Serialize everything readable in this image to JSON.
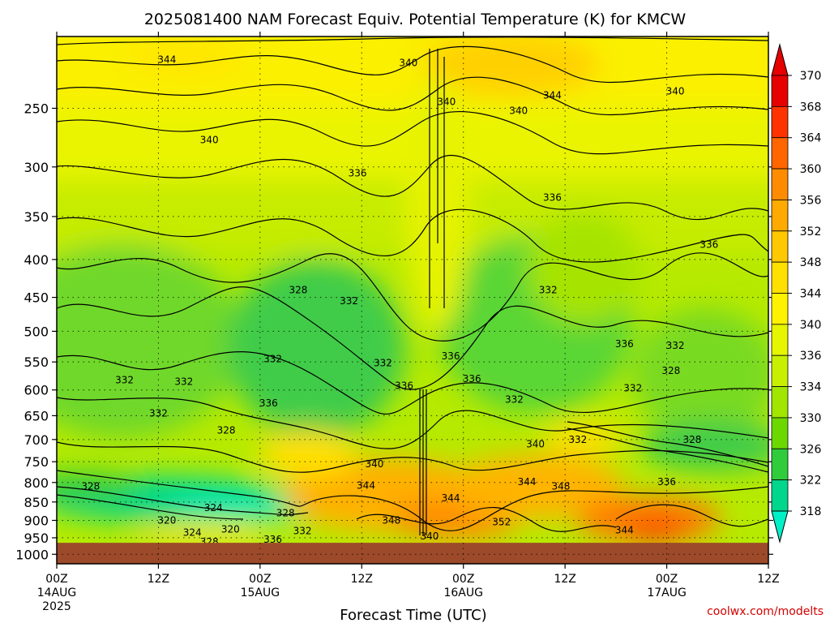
{
  "chart_data": {
    "type": "heatmap",
    "title": "2025081400 NAM Forecast Equiv. Potential Temperature (K) for KMCW",
    "xlabel": "Forecast Time (UTC)",
    "ylabel": "",
    "credit": "coolwx.com/modelts",
    "y_ticks": [
      "250",
      "300",
      "350",
      "400",
      "450",
      "500",
      "550",
      "600",
      "650",
      "700",
      "750",
      "800",
      "850",
      "900",
      "950",
      "1000"
    ],
    "x_ticks": [
      {
        "hour": 0,
        "top": "00Z",
        "mid": "14AUG",
        "bottom": "2025"
      },
      {
        "hour": 12,
        "top": "12Z",
        "mid": "",
        "bottom": ""
      },
      {
        "hour": 24,
        "top": "00Z",
        "mid": "15AUG",
        "bottom": ""
      },
      {
        "hour": 36,
        "top": "12Z",
        "mid": "",
        "bottom": ""
      },
      {
        "hour": 48,
        "top": "00Z",
        "mid": "16AUG",
        "bottom": ""
      },
      {
        "hour": 60,
        "top": "12Z",
        "mid": "",
        "bottom": ""
      },
      {
        "hour": 72,
        "top": "00Z",
        "mid": "17AUG",
        "bottom": ""
      },
      {
        "hour": 84,
        "top": "12Z",
        "mid": "",
        "bottom": ""
      }
    ],
    "x_range_hours": [
      0,
      84
    ],
    "y_range_hPa": [
      1030,
      200
    ],
    "y_scale": "log",
    "ground_level_hPa": 965,
    "grid": true,
    "colorbar": {
      "levels": [
        "370",
        "368",
        "364",
        "360",
        "356",
        "352",
        "348",
        "344",
        "340",
        "336",
        "334",
        "330",
        "326",
        "322",
        "318"
      ],
      "colors": [
        "#e60000",
        "#ff3300",
        "#ff6600",
        "#ff8c00",
        "#ffaa00",
        "#ffc800",
        "#ffe000",
        "#fff200",
        "#e6f500",
        "#c8ef00",
        "#a0e600",
        "#6cd800",
        "#30cc3c",
        "#00d68c",
        "#00f0c8"
      ]
    },
    "contour_labels": [
      {
        "text": "344",
        "hour": 13.0,
        "p": 215
      },
      {
        "text": "340",
        "hour": 41.5,
        "p": 217
      },
      {
        "text": "340",
        "hour": 46.0,
        "p": 245
      },
      {
        "text": "344",
        "hour": 58.5,
        "p": 240
      },
      {
        "text": "340",
        "hour": 54.5,
        "p": 252
      },
      {
        "text": "340",
        "hour": 73.0,
        "p": 237
      },
      {
        "text": "340",
        "hour": 18.0,
        "p": 276
      },
      {
        "text": "336",
        "hour": 35.5,
        "p": 306
      },
      {
        "text": "336",
        "hour": 58.5,
        "p": 330
      },
      {
        "text": "336",
        "hour": 77.0,
        "p": 382
      },
      {
        "text": "328",
        "hour": 28.5,
        "p": 440
      },
      {
        "text": "332",
        "hour": 34.5,
        "p": 455
      },
      {
        "text": "332",
        "hour": 58.0,
        "p": 440
      },
      {
        "text": "336",
        "hour": 67.0,
        "p": 520
      },
      {
        "text": "332",
        "hour": 73.0,
        "p": 523
      },
      {
        "text": "332",
        "hour": 25.5,
        "p": 545
      },
      {
        "text": "332",
        "hour": 38.5,
        "p": 552
      },
      {
        "text": "336",
        "hour": 46.5,
        "p": 540
      },
      {
        "text": "328",
        "hour": 72.5,
        "p": 565
      },
      {
        "text": "332",
        "hour": 8.0,
        "p": 582
      },
      {
        "text": "332",
        "hour": 15.0,
        "p": 585
      },
      {
        "text": "336",
        "hour": 41.0,
        "p": 592
      },
      {
        "text": "336",
        "hour": 49.0,
        "p": 580
      },
      {
        "text": "332",
        "hour": 68.0,
        "p": 597
      },
      {
        "text": "336",
        "hour": 25.0,
        "p": 625
      },
      {
        "text": "332",
        "hour": 54.0,
        "p": 618
      },
      {
        "text": "332",
        "hour": 12.0,
        "p": 645
      },
      {
        "text": "328",
        "hour": 20.0,
        "p": 680
      },
      {
        "text": "340",
        "hour": 56.5,
        "p": 710
      },
      {
        "text": "332",
        "hour": 61.5,
        "p": 700
      },
      {
        "text": "328",
        "hour": 75.0,
        "p": 700
      },
      {
        "text": "340",
        "hour": 37.5,
        "p": 755
      },
      {
        "text": "328",
        "hour": 4.0,
        "p": 810
      },
      {
        "text": "344",
        "hour": 36.5,
        "p": 808
      },
      {
        "text": "344",
        "hour": 55.5,
        "p": 798
      },
      {
        "text": "348",
        "hour": 59.5,
        "p": 810
      },
      {
        "text": "336",
        "hour": 72.0,
        "p": 798
      },
      {
        "text": "344",
        "hour": 46.5,
        "p": 840
      },
      {
        "text": "324",
        "hour": 18.5,
        "p": 865
      },
      {
        "text": "328",
        "hour": 27.0,
        "p": 880
      },
      {
        "text": "320",
        "hour": 13.0,
        "p": 900
      },
      {
        "text": "348",
        "hour": 39.5,
        "p": 900
      },
      {
        "text": "352",
        "hour": 52.5,
        "p": 905
      },
      {
        "text": "324",
        "hour": 16.0,
        "p": 935
      },
      {
        "text": "320",
        "hour": 20.5,
        "p": 925
      },
      {
        "text": "332",
        "hour": 29.0,
        "p": 930
      },
      {
        "text": "340",
        "hour": 44.0,
        "p": 945
      },
      {
        "text": "344",
        "hour": 67.0,
        "p": 928
      },
      {
        "text": "328",
        "hour": 18.0,
        "p": 962
      },
      {
        "text": "336",
        "hour": 25.5,
        "p": 955
      }
    ]
  }
}
